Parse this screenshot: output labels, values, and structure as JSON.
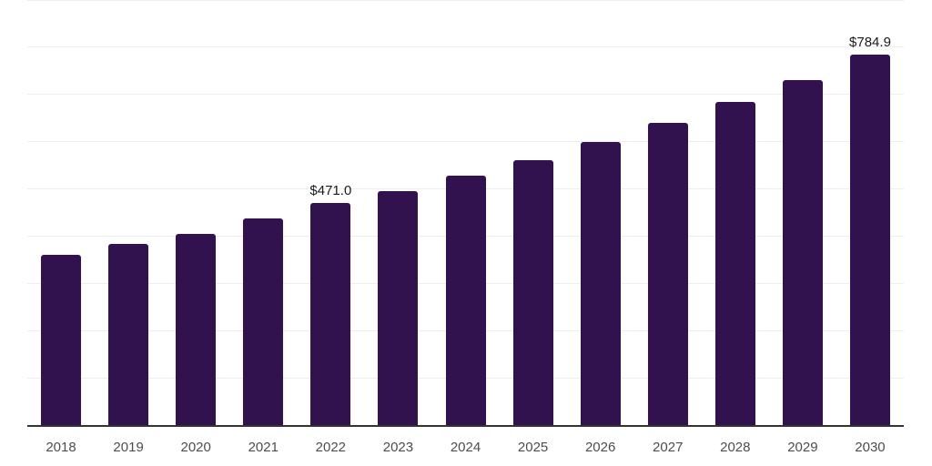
{
  "chart_data": {
    "type": "bar",
    "title": "",
    "xlabel": "",
    "ylabel": "",
    "categories": [
      "2018",
      "2019",
      "2020",
      "2021",
      "2022",
      "2023",
      "2024",
      "2025",
      "2026",
      "2027",
      "2028",
      "2029",
      "2030"
    ],
    "values": [
      360,
      383,
      405,
      437,
      471.0,
      496,
      529,
      561,
      599,
      640,
      684,
      731,
      784.9
    ],
    "data_labels": [
      "",
      "",
      "",
      "",
      "$471.0",
      "",
      "",
      "",
      "",
      "",
      "",
      "",
      "$784.9"
    ],
    "ylim": [
      0,
      900
    ],
    "gridline_step": 100,
    "grid": true,
    "legend": false,
    "y_axis_labels_visible": false
  },
  "colors": {
    "bar": "#31124E",
    "grid": "#EEEEEE",
    "axis": "#333333",
    "tick_label": "#4D4D4D",
    "data_label": "#1A1A1A",
    "background": "#FFFFFF"
  }
}
